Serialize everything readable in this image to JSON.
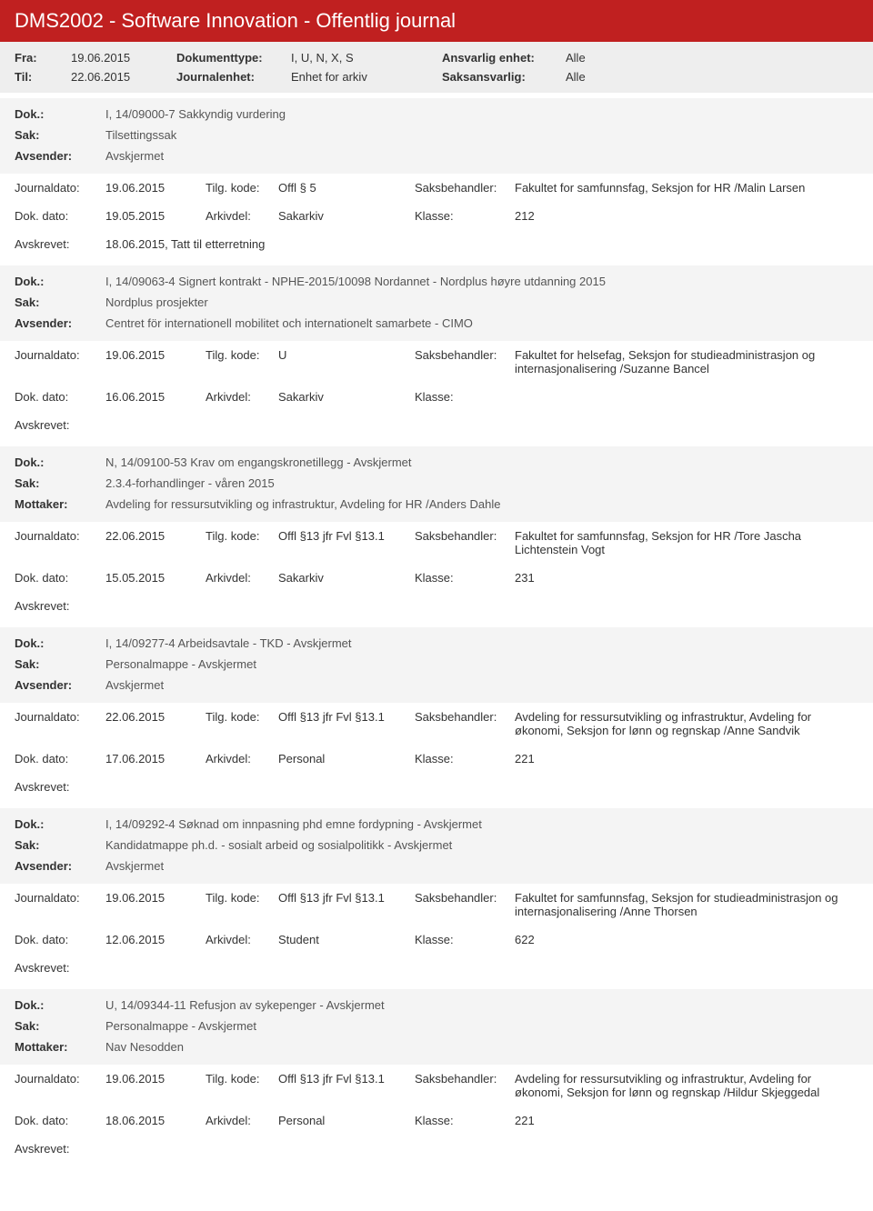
{
  "header": {
    "title": "DMS2002 - Software Innovation - Offentlig journal"
  },
  "filters": {
    "fra_label": "Fra:",
    "fra": "19.06.2015",
    "til_label": "Til:",
    "til": "22.06.2015",
    "doktype_label": "Dokumenttype:",
    "doktype": "I, U, N, X, S",
    "journalenhet_label": "Journalenhet:",
    "journalenhet": "Enhet for arkiv",
    "ansvarlig_label": "Ansvarlig enhet:",
    "ansvarlig": "Alle",
    "saksansvarlig_label": "Saksansvarlig:",
    "saksansvarlig": "Alle"
  },
  "labels": {
    "dok": "Dok.:",
    "sak": "Sak:",
    "avsender": "Avsender:",
    "mottaker": "Mottaker:",
    "journaldato": "Journaldato:",
    "tilgkode": "Tilg. kode:",
    "saksbehandler": "Saksbehandler:",
    "dokdato": "Dok. dato:",
    "arkivdel": "Arkivdel:",
    "klasse": "Klasse:",
    "avskrevet": "Avskrevet:"
  },
  "entries": [
    {
      "dok": "I, 14/09000-7 Sakkyndig vurdering",
      "sak": "Tilsettingssak",
      "party_label": "Avsender:",
      "party": "Avskjermet",
      "journaldato": "19.06.2015",
      "tilgkode": "Offl § 5",
      "saksbehandler": "Fakultet for samfunnsfag, Seksjon for HR /Malin Larsen",
      "dokdato": "19.05.2015",
      "arkivdel": "Sakarkiv",
      "klasse": "212",
      "avskrevet": "18.06.2015, Tatt til etterretning"
    },
    {
      "dok": "I, 14/09063-4 Signert kontrakt - NPHE-2015/10098 Nordannet - Nordplus høyre utdanning 2015",
      "sak": "Nordplus prosjekter",
      "party_label": "Avsender:",
      "party": "Centret för internationell mobilitet och internationelt samarbete - CIMO",
      "journaldato": "19.06.2015",
      "tilgkode": "U",
      "saksbehandler": "Fakultet for helsefag, Seksjon for studieadministrasjon og internasjonalisering /Suzanne Bancel",
      "dokdato": "16.06.2015",
      "arkivdel": "Sakarkiv",
      "klasse": "",
      "avskrevet": ""
    },
    {
      "dok": "N, 14/09100-53 Krav om engangskronetillegg - Avskjermet",
      "sak": "2.3.4-forhandlinger - våren 2015",
      "party_label": "Mottaker:",
      "party": "Avdeling for ressursutvikling og infrastruktur, Avdeling for HR /Anders Dahle",
      "journaldato": "22.06.2015",
      "tilgkode": "Offl §13 jfr Fvl §13.1",
      "saksbehandler": "Fakultet for samfunnsfag, Seksjon for HR /Tore Jascha Lichtenstein Vogt",
      "dokdato": "15.05.2015",
      "arkivdel": "Sakarkiv",
      "klasse": "231",
      "avskrevet": ""
    },
    {
      "dok": "I, 14/09277-4 Arbeidsavtale - TKD - Avskjermet",
      "sak": "Personalmappe - Avskjermet",
      "party_label": "Avsender:",
      "party": "Avskjermet",
      "journaldato": "22.06.2015",
      "tilgkode": "Offl §13 jfr Fvl §13.1",
      "saksbehandler": "Avdeling for ressursutvikling og infrastruktur, Avdeling for økonomi, Seksjon for lønn og regnskap /Anne Sandvik",
      "dokdato": "17.06.2015",
      "arkivdel": "Personal",
      "klasse": "221",
      "avskrevet": ""
    },
    {
      "dok": "I, 14/09292-4 Søknad om innpasning phd emne fordypning - Avskjermet",
      "sak": "Kandidatmappe ph.d. - sosialt arbeid og sosialpolitikk - Avskjermet",
      "party_label": "Avsender:",
      "party": "Avskjermet",
      "journaldato": "19.06.2015",
      "tilgkode": "Offl §13 jfr Fvl §13.1",
      "saksbehandler": "Fakultet for samfunnsfag, Seksjon for studieadministrasjon og internasjonalisering /Anne Thorsen",
      "dokdato": "12.06.2015",
      "arkivdel": "Student",
      "klasse": "622",
      "avskrevet": ""
    },
    {
      "dok": "U, 14/09344-11 Refusjon av sykepenger - Avskjermet",
      "sak": "Personalmappe - Avskjermet",
      "party_label": "Mottaker:",
      "party": "Nav Nesodden",
      "journaldato": "19.06.2015",
      "tilgkode": "Offl §13 jfr Fvl §13.1",
      "saksbehandler": "Avdeling for ressursutvikling og infrastruktur, Avdeling for økonomi, Seksjon for lønn og regnskap /Hildur Skjeggedal",
      "dokdato": "18.06.2015",
      "arkivdel": "Personal",
      "klasse": "221",
      "avskrevet": ""
    }
  ]
}
